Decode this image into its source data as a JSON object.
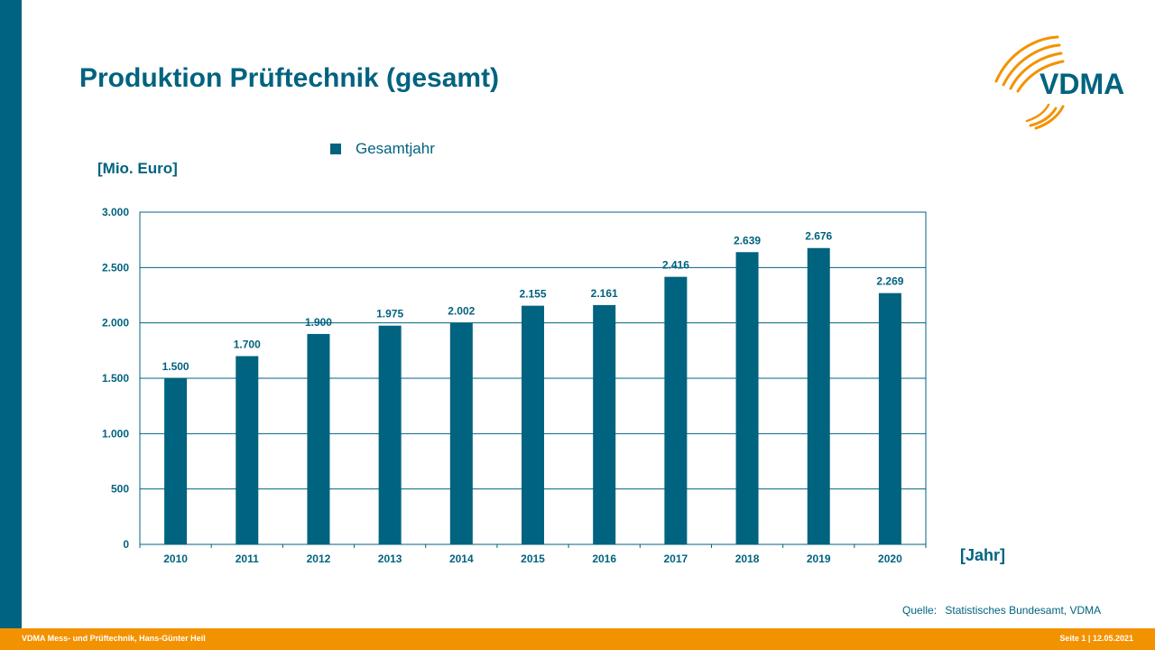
{
  "page": {
    "title": "Produktion Prüftechnik (gesamt)",
    "logo_text": "VDMA",
    "source_label": "Quelle:",
    "source_value": "Statistisches Bundesamt, VDMA",
    "footer_left": "VDMA Mess- und Prüftechnik, Hans-Günter Heil",
    "footer_right": "Seite 1 | 12.05.2021"
  },
  "colors": {
    "primary": "#00637f",
    "accent": "#f39200",
    "bar": "#00637f"
  },
  "chart_data": {
    "type": "bar",
    "title": "Produktion Prüftechnik (gesamt)",
    "ylabel": "[Mio. Euro]",
    "xlabel": "[Jahr]",
    "categories": [
      "2010",
      "2011",
      "2012",
      "2013",
      "2014",
      "2015",
      "2016",
      "2017",
      "2018",
      "2019",
      "2020"
    ],
    "series": [
      {
        "name": "Gesamtjahr",
        "values": [
          1500,
          1700,
          1900,
          1975,
          2002,
          2155,
          2161,
          2416,
          2639,
          2676,
          2269
        ],
        "labels": [
          "1.500",
          "1.700",
          "1.900",
          "1.975",
          "2.002",
          "2.155",
          "2.161",
          "2.416",
          "2.639",
          "2.676",
          "2.269"
        ]
      }
    ],
    "ylim": [
      0,
      3000
    ],
    "yticks": [
      0,
      500,
      1000,
      1500,
      2000,
      2500,
      3000
    ],
    "ytick_labels": [
      "0",
      "500",
      "1.000",
      "1.500",
      "2.000",
      "2.500",
      "3.000"
    ],
    "grid": "horizontal",
    "legend_position": "top"
  }
}
